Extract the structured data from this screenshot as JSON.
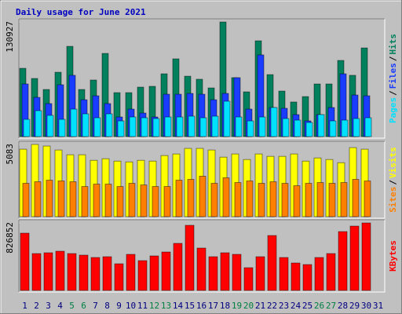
{
  "legend_separator": "/",
  "chart_data": [
    {
      "type": "bar",
      "title": "Daily usage for June 2021",
      "title_color": "#0000c0",
      "ylim": [
        0,
        130927
      ],
      "yticks": [
        130927
      ],
      "series": [
        {
          "name": "Hits",
          "color": "#00805c",
          "values": [
            78000,
            66400,
            53800,
            73500,
            103100,
            53800,
            64600,
            95000,
            50200,
            50200,
            56500,
            57400,
            71700,
            88800,
            69000,
            65500,
            55600,
            130927,
            67300,
            51100,
            109400,
            70800,
            52000,
            39500,
            45700,
            60100,
            60100,
            87000,
            70000,
            101300,
            null
          ]
        },
        {
          "name": "Files",
          "color": "#1a3cff",
          "values": [
            60100,
            44800,
            37700,
            59200,
            70000,
            42100,
            46600,
            37700,
            22400,
            31400,
            26900,
            22400,
            48400,
            48400,
            49300,
            48400,
            42100,
            49300,
            67300,
            31400,
            93300,
            33200,
            32300,
            25100,
            17900,
            25100,
            33200,
            71700,
            47500,
            46600,
            null
          ]
        },
        {
          "name": "Pages",
          "color": "#00e0ff",
          "values": [
            19700,
            29600,
            24200,
            19700,
            31400,
            26000,
            21500,
            26000,
            17900,
            22400,
            21500,
            20600,
            22400,
            22400,
            23300,
            21500,
            23300,
            40400,
            22400,
            17900,
            22400,
            33200,
            20600,
            18800,
            16100,
            25100,
            17900,
            18800,
            20600,
            21500,
            null
          ]
        }
      ]
    },
    {
      "type": "bar",
      "ylim": [
        0,
        5083
      ],
      "yticks": [
        5083
      ],
      "series": [
        {
          "name": "Visits",
          "color": "#ffff00",
          "values": [
            4748,
            5083,
            4971,
            4692,
            4357,
            4357,
            3966,
            4078,
            3910,
            3854,
            3966,
            3910,
            4301,
            4413,
            4804,
            4804,
            4692,
            4189,
            4413,
            4022,
            4413,
            4245,
            4245,
            4413,
            3910,
            4133,
            4022,
            3798,
            4860,
            4748,
            null
          ]
        },
        {
          "name": "Sites",
          "color": "#ff8000",
          "values": [
            2346,
            2458,
            2569,
            2514,
            2458,
            2123,
            2290,
            2290,
            2123,
            2346,
            2234,
            2123,
            2123,
            2569,
            2625,
            2849,
            2346,
            2737,
            2402,
            2514,
            2346,
            2458,
            2346,
            2178,
            2346,
            2402,
            2346,
            2402,
            2625,
            2514,
            null
          ]
        }
      ]
    },
    {
      "type": "bar",
      "ylim": [
        0,
        826852
      ],
      "yticks": [
        826852
      ],
      "categories": [
        "1",
        "2",
        "3",
        "4",
        "5",
        "6",
        "7",
        "8",
        "9",
        "10",
        "11",
        "12",
        "13",
        "14",
        "15",
        "16",
        "17",
        "18",
        "19",
        "20",
        "21",
        "22",
        "23",
        "24",
        "25",
        "26",
        "27",
        "28",
        "29",
        "30",
        "31"
      ],
      "category_colors": [
        "#000080",
        "#000080",
        "#000080",
        "#000080",
        "#008040",
        "#008040",
        "#000080",
        "#000080",
        "#000080",
        "#000080",
        "#000080",
        "#008040",
        "#008040",
        "#000080",
        "#000080",
        "#000080",
        "#000080",
        "#000080",
        "#008040",
        "#008040",
        "#000080",
        "#000080",
        "#000080",
        "#000080",
        "#000080",
        "#008040",
        "#008040",
        "#000080",
        "#000080",
        "#000080",
        "#000080"
      ],
      "series": [
        {
          "name": "KBytes",
          "color": "#ff0000",
          "values": [
            701800,
            451900,
            461500,
            480700,
            451900,
            432700,
            403800,
            413400,
            326900,
            442300,
            365300,
            423000,
            471100,
            576900,
            798000,
            519200,
            413400,
            461500,
            442300,
            278800,
            413400,
            673000,
            403800,
            336500,
            317300,
            403800,
            451900,
            721100,
            788400,
            826852,
            null
          ]
        }
      ]
    }
  ]
}
